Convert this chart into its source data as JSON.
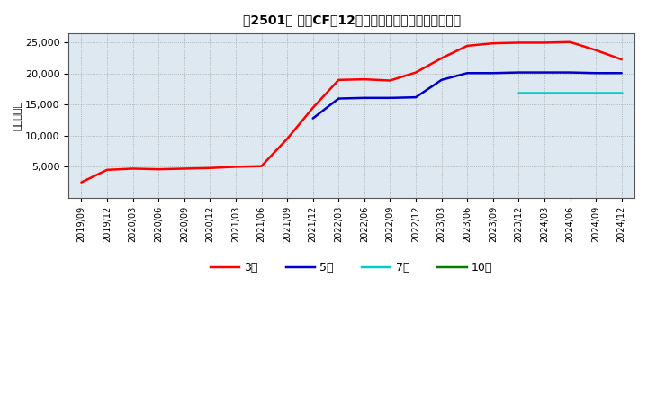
{
  "title": "［2501］ 投資CFの12か月移動合計の標準偏差の推移",
  "ylabel": "（百万円）",
  "ylim": [
    0,
    26500
  ],
  "yticks": [
    5000,
    10000,
    15000,
    20000,
    25000
  ],
  "background_color": "#ffffff",
  "plot_bg_color": "#dde8f0",
  "grid_color": "#888888",
  "series": {
    "3年": {
      "color": "#ff0000",
      "x": [
        "2019/09",
        "2019/12",
        "2020/03",
        "2020/06",
        "2020/09",
        "2020/12",
        "2021/03",
        "2021/06",
        "2021/09",
        "2021/12",
        "2022/03",
        "2022/06",
        "2022/09",
        "2022/12",
        "2023/03",
        "2023/06",
        "2023/09",
        "2023/12",
        "2024/03",
        "2024/06",
        "2024/09",
        "2024/12"
      ],
      "y": [
        2500,
        4500,
        4700,
        4600,
        4700,
        4800,
        5000,
        5100,
        9500,
        14500,
        19000,
        19100,
        18900,
        20200,
        22500,
        24500,
        24900,
        25000,
        25000,
        25100,
        23800,
        22300
      ]
    },
    "5年": {
      "color": "#0000cc",
      "x": [
        "2021/12",
        "2022/03",
        "2022/06",
        "2022/09",
        "2022/12",
        "2023/03",
        "2023/06",
        "2023/09",
        "2023/12",
        "2024/03",
        "2024/06",
        "2024/09",
        "2024/12"
      ],
      "y": [
        12800,
        16000,
        16100,
        16100,
        16200,
        19000,
        20100,
        20100,
        20200,
        20200,
        20200,
        20100,
        20100
      ]
    },
    "7年": {
      "color": "#00cccc",
      "x": [
        "2023/12",
        "2024/03",
        "2024/06",
        "2024/09",
        "2024/12"
      ],
      "y": [
        17000,
        17000,
        17000,
        17000,
        17000
      ]
    },
    "10年": {
      "color": "#008000",
      "x": [],
      "y": []
    }
  },
  "legend_labels": [
    "3年",
    "5年",
    "7年",
    "10年"
  ],
  "legend_colors": [
    "#ff0000",
    "#0000cc",
    "#00cccc",
    "#008000"
  ],
  "xtick_labels": [
    "2019/09",
    "2019/12",
    "2020/03",
    "2020/06",
    "2020/09",
    "2020/12",
    "2021/03",
    "2021/06",
    "2021/09",
    "2021/12",
    "2022/03",
    "2022/06",
    "2022/09",
    "2022/12",
    "2023/03",
    "2023/06",
    "2023/09",
    "2023/12",
    "2024/03",
    "2024/06",
    "2024/09",
    "2024/12"
  ]
}
